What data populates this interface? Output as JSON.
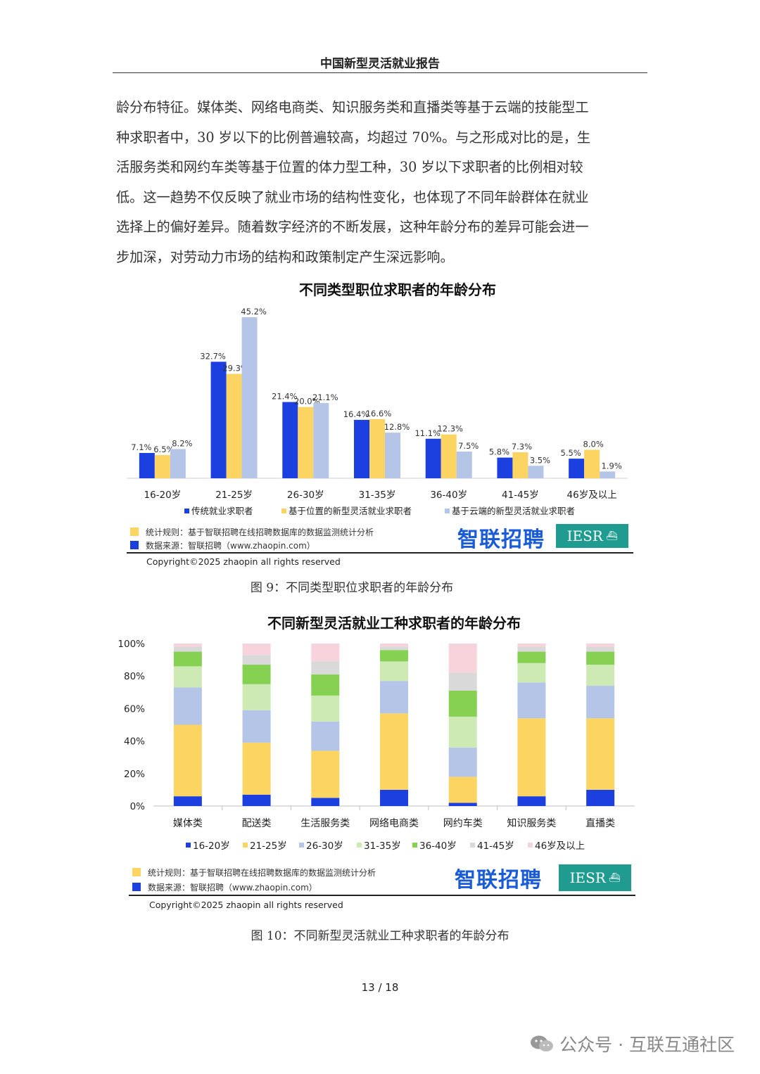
{
  "header": {
    "title": "中国新型灵活就业报告"
  },
  "paragraph": [
    "龄分布特征。媒体类、网络电商类、知识服务类和直播类等基于云端的技能型工",
    "种求职者中，30 岁以下的比例普遍较高，均超过 70%。与之形成对比的是，生",
    "活服务类和网约车类等基于位置的体力型工种，30 岁以下求职者的比例相对较",
    "低。这一趋势不仅反映了就业市场的结构性变化，也体现了不同年龄群体在就业",
    "选择上的偏好差异。随着数字经济的不断发展，这种年龄分布的差异可能会进一",
    "步加深，对劳动力市场的结构和政策制定产生深远影响。"
  ],
  "figure9": {
    "caption": "图 9：不同类型职位求职者的年龄分布",
    "notes": {
      "rule": "统计规则：基于智联招聘在线招聘数据库的数据监测统计分析",
      "source": "数据来源：智联招聘（www.zhaopin.com）",
      "copyright": "Copyright©2025 zhaopin all rights reserved"
    },
    "logos": {
      "zhilian": "智联招聘",
      "iesr": "IESR"
    },
    "chart_data": {
      "type": "bar",
      "title": "不同类型职位求职者的年龄分布",
      "categories": [
        "16-20岁",
        "21-25岁",
        "26-30岁",
        "31-35岁",
        "36-40岁",
        "41-45岁",
        "46岁及以上"
      ],
      "series": [
        {
          "name": "传统就业求职者",
          "color": "#1c3fe0",
          "values": [
            7.1,
            32.7,
            21.4,
            16.4,
            11.1,
            5.8,
            5.5
          ],
          "labels": [
            "7.1%",
            "32.7%",
            "21.4%",
            "16.4%",
            "11.1%",
            "5.8%",
            "5.5%"
          ]
        },
        {
          "name": "基于位置的新型灵活就业求职者",
          "color": "#fcd462",
          "values": [
            6.5,
            29.3,
            20.0,
            16.6,
            12.3,
            7.3,
            8.0
          ],
          "labels": [
            "6.5%",
            "29.3%",
            "20.0%",
            "16.6%",
            "12.3%",
            "7.3%",
            "8.0%"
          ]
        },
        {
          "name": "基于云端的新型灵活就业求职者",
          "color": "#b4c5e8",
          "values": [
            8.2,
            45.2,
            21.1,
            12.8,
            7.5,
            3.5,
            1.9
          ],
          "labels": [
            "8.2%",
            "45.2%",
            "21.1%",
            "12.8%",
            "7.5%",
            "3.5%",
            "1.9%"
          ]
        }
      ],
      "ylim": [
        0,
        45.2
      ],
      "legend": "bottom"
    }
  },
  "figure10": {
    "caption": "图 10：不同新型灵活就业工种求职者的年龄分布",
    "notes": {
      "rule": "统计规则：基于智联招聘在线招聘数据库的数据监测统计分析",
      "source": "数据来源：智联招聘（www.zhaopin.com）",
      "copyright": "Copyright©2025 zhaopin all rights reserved"
    },
    "logos": {
      "zhilian": "智联招聘",
      "iesr": "IESR"
    },
    "chart_data": {
      "type": "bar",
      "stacked": true,
      "title": "不同新型灵活就业工种求职者的年龄分布",
      "categories": [
        "媒体类",
        "配送类",
        "生活服务类",
        "网络电商类",
        "网约车类",
        "知识服务类",
        "直播类"
      ],
      "yticks": [
        "0%",
        "20%",
        "40%",
        "60%",
        "80%",
        "100%"
      ],
      "ylim": [
        0,
        100
      ],
      "series": [
        {
          "name": "16-20岁",
          "color": "#1c3fe0",
          "values": [
            6,
            7,
            5,
            10,
            2,
            6,
            10
          ]
        },
        {
          "name": "21-25岁",
          "color": "#fcd462",
          "values": [
            44,
            32,
            29,
            47,
            16,
            48,
            44
          ]
        },
        {
          "name": "26-30岁",
          "color": "#b4c5e8",
          "values": [
            23,
            20,
            18,
            20,
            18,
            22,
            20
          ]
        },
        {
          "name": "31-35岁",
          "color": "#cdeab4",
          "values": [
            13,
            16,
            16,
            12,
            19,
            12,
            13
          ]
        },
        {
          "name": "36-40岁",
          "color": "#86d152",
          "values": [
            9,
            12,
            13,
            7,
            16,
            7,
            8
          ]
        },
        {
          "name": "41-45岁",
          "color": "#d9d9d9",
          "values": [
            3,
            6,
            8,
            2,
            11,
            3,
            3
          ]
        },
        {
          "name": "46岁及以上",
          "color": "#f7d3dc",
          "values": [
            2,
            7,
            11,
            2,
            18,
            2,
            2
          ]
        }
      ],
      "legend": "bottom"
    }
  },
  "page_number": "13 / 18",
  "watermark": "公众号 · 互联互通社区"
}
